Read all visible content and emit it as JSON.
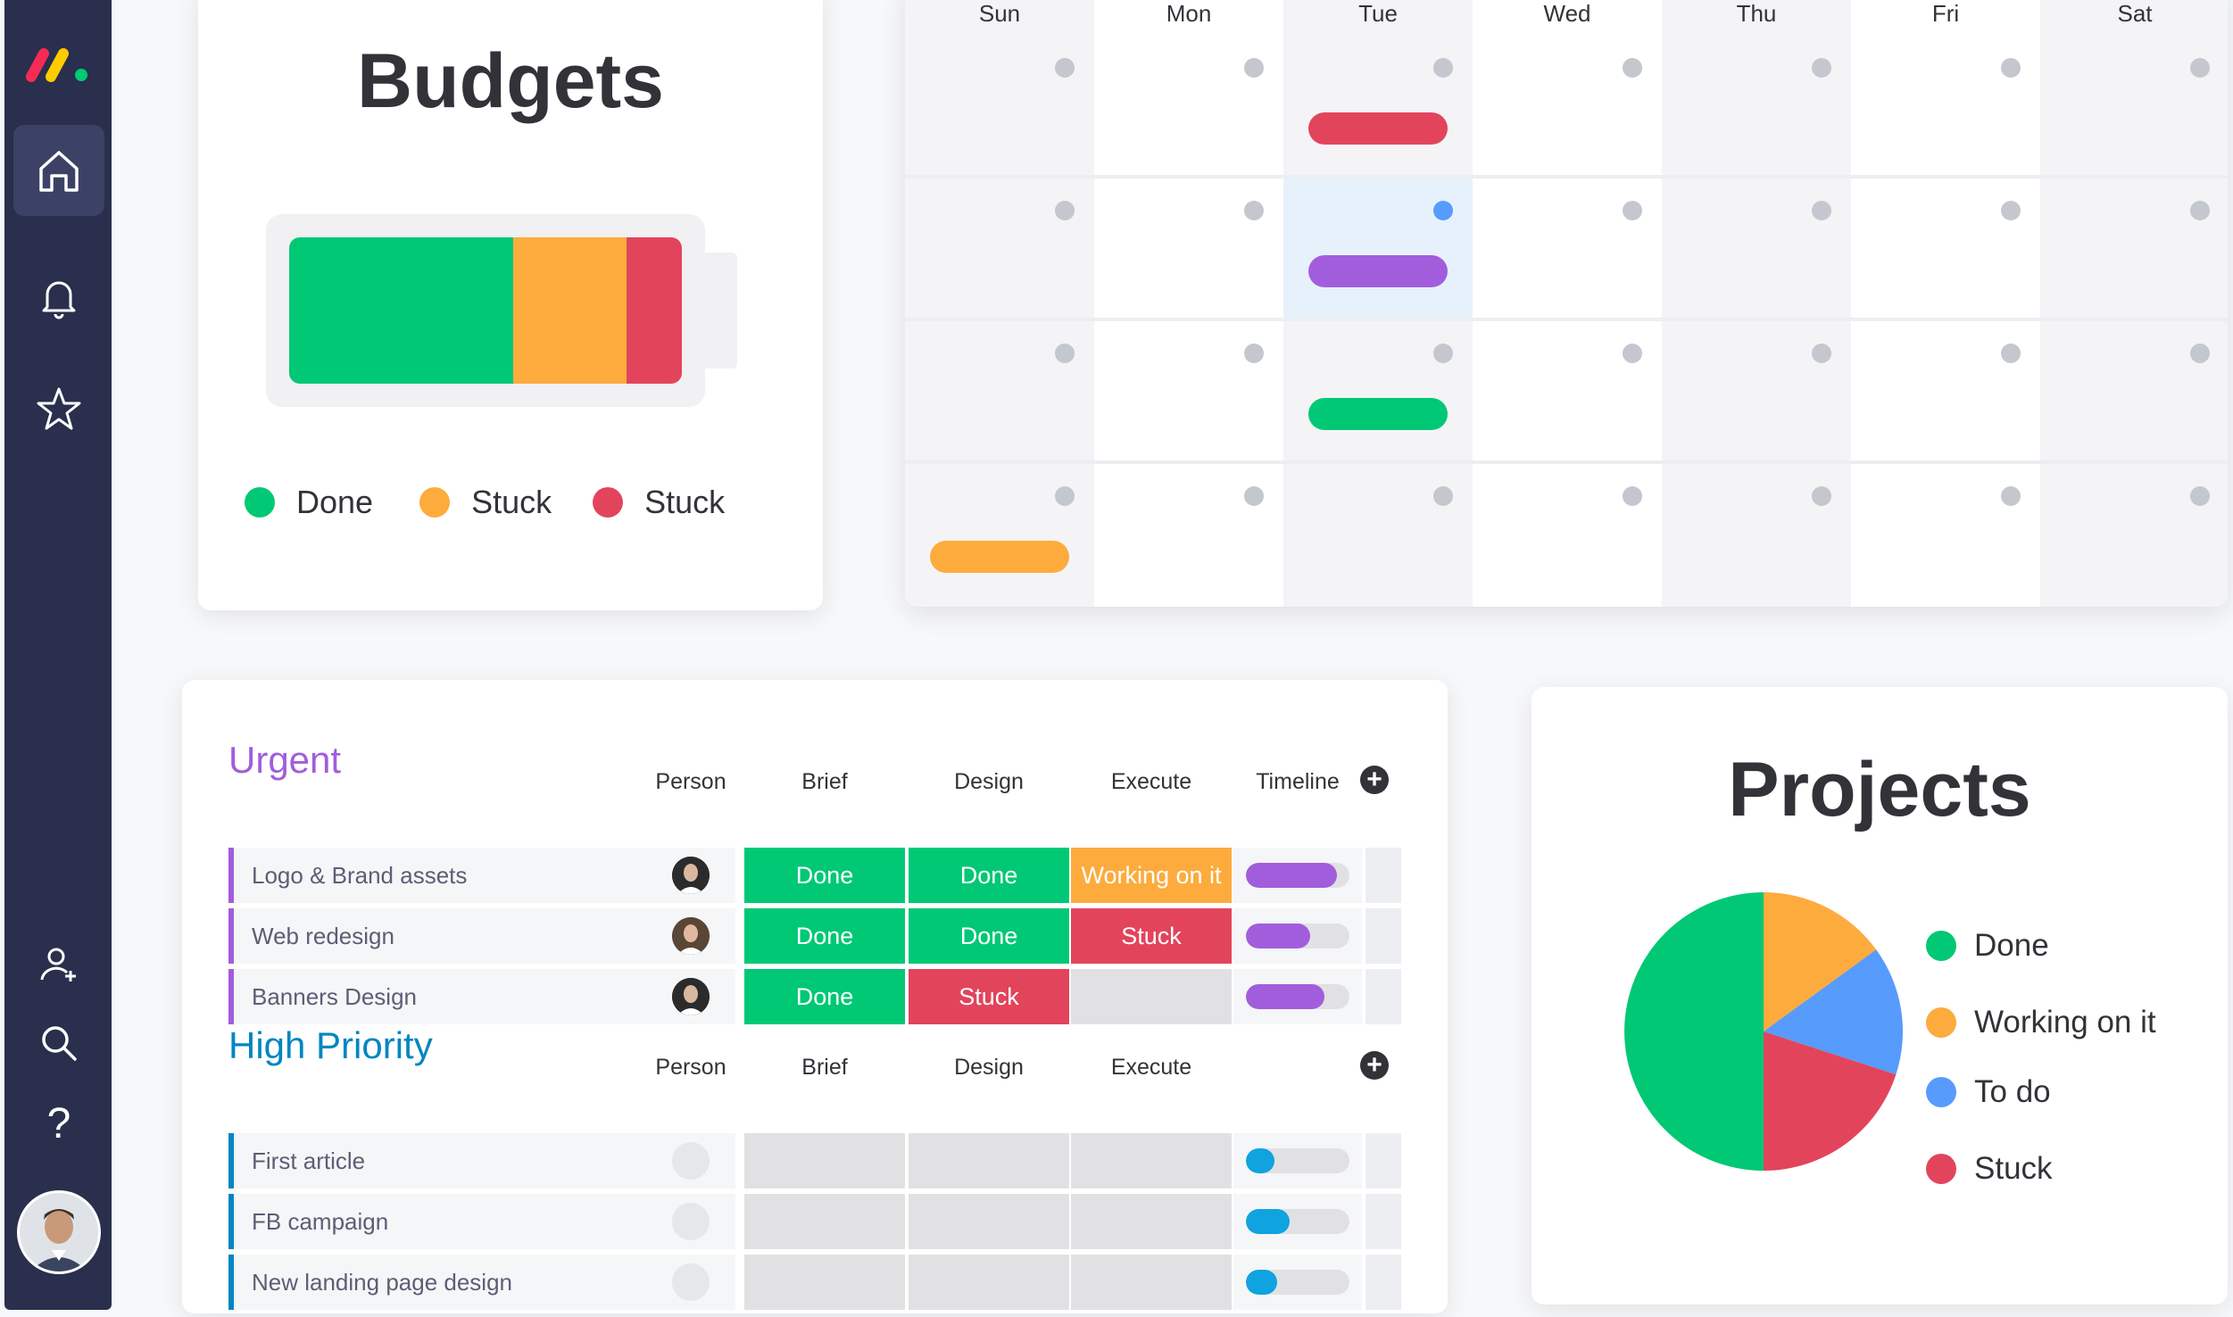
{
  "sidebar": {
    "logo": "monday-logo",
    "nav": [
      "home-icon",
      "bell-icon",
      "star-icon"
    ],
    "bottom": [
      "add-user-icon",
      "search-icon"
    ],
    "help_label": "?"
  },
  "budgets": {
    "title": "Budgets",
    "battery": {
      "segments": [
        {
          "label": "Done",
          "fraction": 0.57,
          "color": "#00c875"
        },
        {
          "label": "Stuck",
          "fraction": 0.29,
          "color": "#fdab3d"
        },
        {
          "label": "Stuck",
          "fraction": 0.14,
          "color": "#e2445c"
        }
      ]
    },
    "legend": [
      {
        "label": "Done",
        "color": "#00c875"
      },
      {
        "label": "Stuck",
        "color": "#fdab3d"
      },
      {
        "label": "Stuck",
        "color": "#e2445c"
      }
    ]
  },
  "calendar": {
    "days": [
      "Sun",
      "Mon",
      "Tue",
      "Wed",
      "Thu",
      "Fri",
      "Sat"
    ],
    "events": [
      {
        "week": 1,
        "day": "Tue",
        "color": "#e2445c"
      },
      {
        "week": 2,
        "day": "Tue",
        "color": "#a25ddc"
      },
      {
        "week": 3,
        "day": "Tue",
        "color": "#00c875"
      },
      {
        "week": 4,
        "day": "Sun",
        "color": "#fdab3d"
      }
    ]
  },
  "board": {
    "groups": [
      {
        "title": "Urgent",
        "color": "#a25ddc",
        "columns": [
          "Person",
          "Brief",
          "Design",
          "Execute",
          "Timeline"
        ],
        "rows": [
          {
            "name": "Logo & Brand assets",
            "brief": "Done",
            "design": "Done",
            "execute": "Working on it",
            "timeline": 0.88
          },
          {
            "name": "Web redesign",
            "brief": "Done",
            "design": "Done",
            "execute": "Stuck",
            "timeline": 0.62
          },
          {
            "name": "Banners Design",
            "brief": "Done",
            "design": "Stuck",
            "execute": "",
            "timeline": 0.76
          }
        ]
      },
      {
        "title": "High Priority",
        "color": "#0086c0",
        "columns": [
          "Person",
          "Brief",
          "Design",
          "Execute"
        ],
        "rows": [
          {
            "name": "First article",
            "timeline": 0.28
          },
          {
            "name": "FB campaign",
            "timeline": 0.42
          },
          {
            "name": "New landing page design",
            "timeline": 0.3
          }
        ]
      }
    ],
    "status_colors": {
      "Done": "#00c875",
      "Working on it": "#fdab3d",
      "Stuck": "#e2445c",
      "empty": "#e1e1e4"
    }
  },
  "projects": {
    "title": "Projects",
    "chart_data": {
      "type": "pie",
      "slices": [
        {
          "label": "Done",
          "value": 50,
          "color": "#00c875"
        },
        {
          "label": "Working on it",
          "value": 15,
          "color": "#fdab3d"
        },
        {
          "label": "To do",
          "value": 15,
          "color": "#579bfc"
        },
        {
          "label": "Stuck",
          "value": 20,
          "color": "#e2445c"
        }
      ]
    }
  }
}
